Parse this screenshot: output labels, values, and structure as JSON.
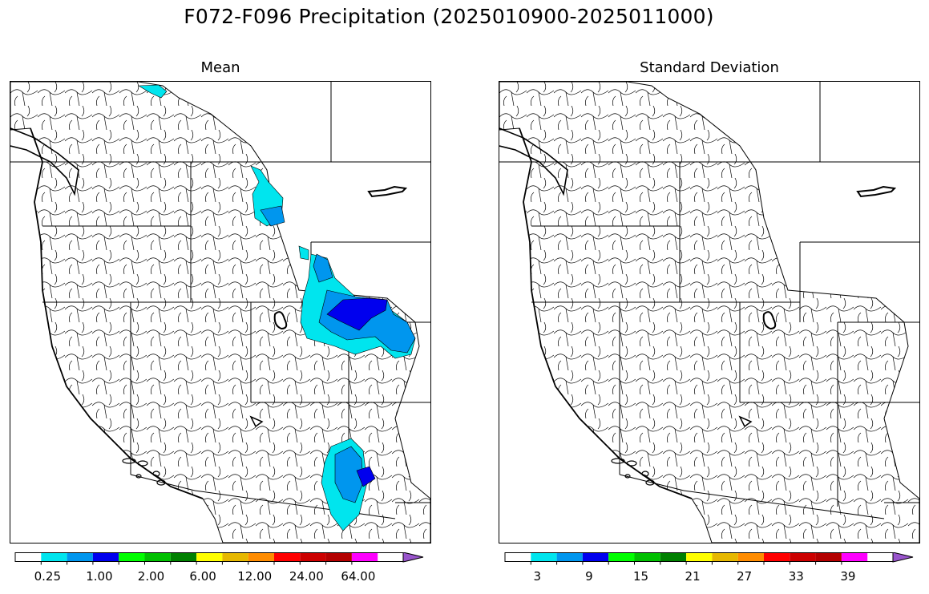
{
  "figure": {
    "title": "F072-F096 Precipitation (2025010900-2025011000)"
  },
  "panels": {
    "mean": {
      "title": "Mean",
      "colorbar": {
        "colors": [
          "#ffffff",
          "#00e5ee",
          "#0096ee",
          "#0000ee",
          "#00ff00",
          "#00c000",
          "#008000",
          "#ffff00",
          "#e6b800",
          "#ff8c00",
          "#ff0000",
          "#cc0000",
          "#b30000",
          "#ff00ff",
          "#9955cc"
        ],
        "tick_labels": [
          "0.25",
          "1.00",
          "2.00",
          "6.00",
          "12.00",
          "24.00",
          "64.00"
        ]
      }
    },
    "stdev": {
      "title": "Standard Deviation",
      "colorbar": {
        "colors": [
          "#ffffff",
          "#00e5ee",
          "#0096ee",
          "#0000ee",
          "#00ff00",
          "#00c000",
          "#008000",
          "#ffff00",
          "#e6b800",
          "#ff8c00",
          "#ff0000",
          "#cc0000",
          "#b30000",
          "#ff00ff",
          "#9955cc"
        ],
        "tick_labels": [
          "3",
          "9",
          "15",
          "21",
          "27",
          "33",
          "39"
        ]
      }
    }
  }
}
